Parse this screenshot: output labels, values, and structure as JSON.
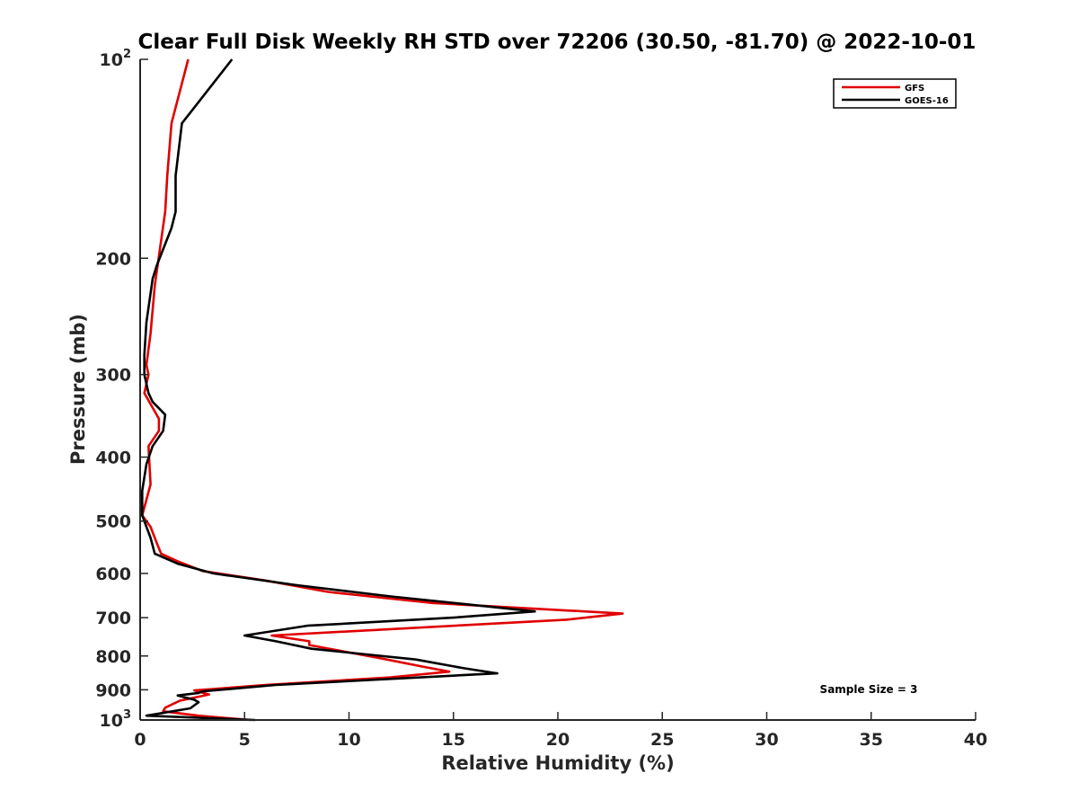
{
  "chart_data": {
    "type": "line",
    "title": "Clear Full Disk Weekly RH STD over 72206 (30.50, -81.70) @ 2022-10-01",
    "xlabel": "Relative Humidity (%)",
    "ylabel": "Pressure (mb)",
    "xlim": [
      0,
      40
    ],
    "ylim": [
      100,
      1000
    ],
    "yscale": "log",
    "yaxis_reversed": true,
    "x_ticks": [
      "0",
      "5",
      "10",
      "15",
      "20",
      "25",
      "30",
      "35",
      "40"
    ],
    "y_ticks": [
      {
        "value": 100,
        "base": "10",
        "exp": "2"
      },
      {
        "value": 200,
        "label": "200"
      },
      {
        "value": 300,
        "label": "300"
      },
      {
        "value": 400,
        "label": "400"
      },
      {
        "value": 500,
        "label": "500"
      },
      {
        "value": 600,
        "label": "600"
      },
      {
        "value": 700,
        "label": "700"
      },
      {
        "value": 800,
        "label": "800"
      },
      {
        "value": 900,
        "label": "900"
      },
      {
        "value": 1000,
        "base": "10",
        "exp": "3"
      }
    ],
    "grid": false,
    "legend_position": "top-right",
    "annotation": "Sample Size = 3",
    "series": [
      {
        "name": "GFS",
        "color": "#e00000",
        "points": [
          [
            2.3,
            100
          ],
          [
            1.5,
            125
          ],
          [
            1.3,
            150
          ],
          [
            1.2,
            170
          ],
          [
            0.7,
            220
          ],
          [
            0.5,
            260
          ],
          [
            0.3,
            290
          ],
          [
            0.4,
            300
          ],
          [
            0.2,
            320
          ],
          [
            0.9,
            350
          ],
          [
            0.9,
            365
          ],
          [
            0.4,
            385
          ],
          [
            0.5,
            440
          ],
          [
            0.1,
            490
          ],
          [
            0.5,
            510
          ],
          [
            0.8,
            540
          ],
          [
            1.0,
            560
          ],
          [
            1.8,
            575
          ],
          [
            3.0,
            595
          ],
          [
            6.0,
            615
          ],
          [
            9.0,
            640
          ],
          [
            14.0,
            665
          ],
          [
            23.1,
            690
          ],
          [
            20.4,
            705
          ],
          [
            6.3,
            745
          ],
          [
            8.1,
            760
          ],
          [
            8.1,
            770
          ],
          [
            11.4,
            805
          ],
          [
            13.5,
            830
          ],
          [
            14.8,
            845
          ],
          [
            12.0,
            862
          ],
          [
            6.0,
            885
          ],
          [
            2.6,
            902
          ],
          [
            3.3,
            915
          ],
          [
            1.9,
            935
          ],
          [
            1.2,
            958
          ],
          [
            1.1,
            970
          ],
          [
            2.8,
            985
          ],
          [
            5.3,
            1000
          ]
        ]
      },
      {
        "name": "GOES-16",
        "color": "#000000",
        "points": [
          [
            4.4,
            100
          ],
          [
            2.0,
            125
          ],
          [
            1.7,
            150
          ],
          [
            1.7,
            170
          ],
          [
            1.5,
            180
          ],
          [
            0.8,
            205
          ],
          [
            0.6,
            215
          ],
          [
            0.3,
            250
          ],
          [
            0.2,
            280
          ],
          [
            0.2,
            300
          ],
          [
            0.4,
            320
          ],
          [
            0.6,
            330
          ],
          [
            1.2,
            345
          ],
          [
            1.1,
            365
          ],
          [
            0.6,
            385
          ],
          [
            0.3,
            410
          ],
          [
            0.1,
            450
          ],
          [
            0.1,
            490
          ],
          [
            0.3,
            510
          ],
          [
            0.5,
            530
          ],
          [
            0.7,
            560
          ],
          [
            1.8,
            580
          ],
          [
            3.5,
            600
          ],
          [
            7.5,
            625
          ],
          [
            12.0,
            650
          ],
          [
            18.9,
            685
          ],
          [
            15.0,
            700
          ],
          [
            8.0,
            720
          ],
          [
            5.0,
            745
          ],
          [
            6.5,
            760
          ],
          [
            8.2,
            780
          ],
          [
            13.2,
            810
          ],
          [
            15.5,
            835
          ],
          [
            17.1,
            850
          ],
          [
            11.0,
            870
          ],
          [
            6.5,
            885
          ],
          [
            3.0,
            905
          ],
          [
            2.8,
            910
          ],
          [
            1.8,
            918
          ],
          [
            2.6,
            932
          ],
          [
            2.8,
            940
          ],
          [
            2.4,
            960
          ],
          [
            0.3,
            985
          ],
          [
            5.5,
            1000
          ]
        ]
      }
    ]
  }
}
